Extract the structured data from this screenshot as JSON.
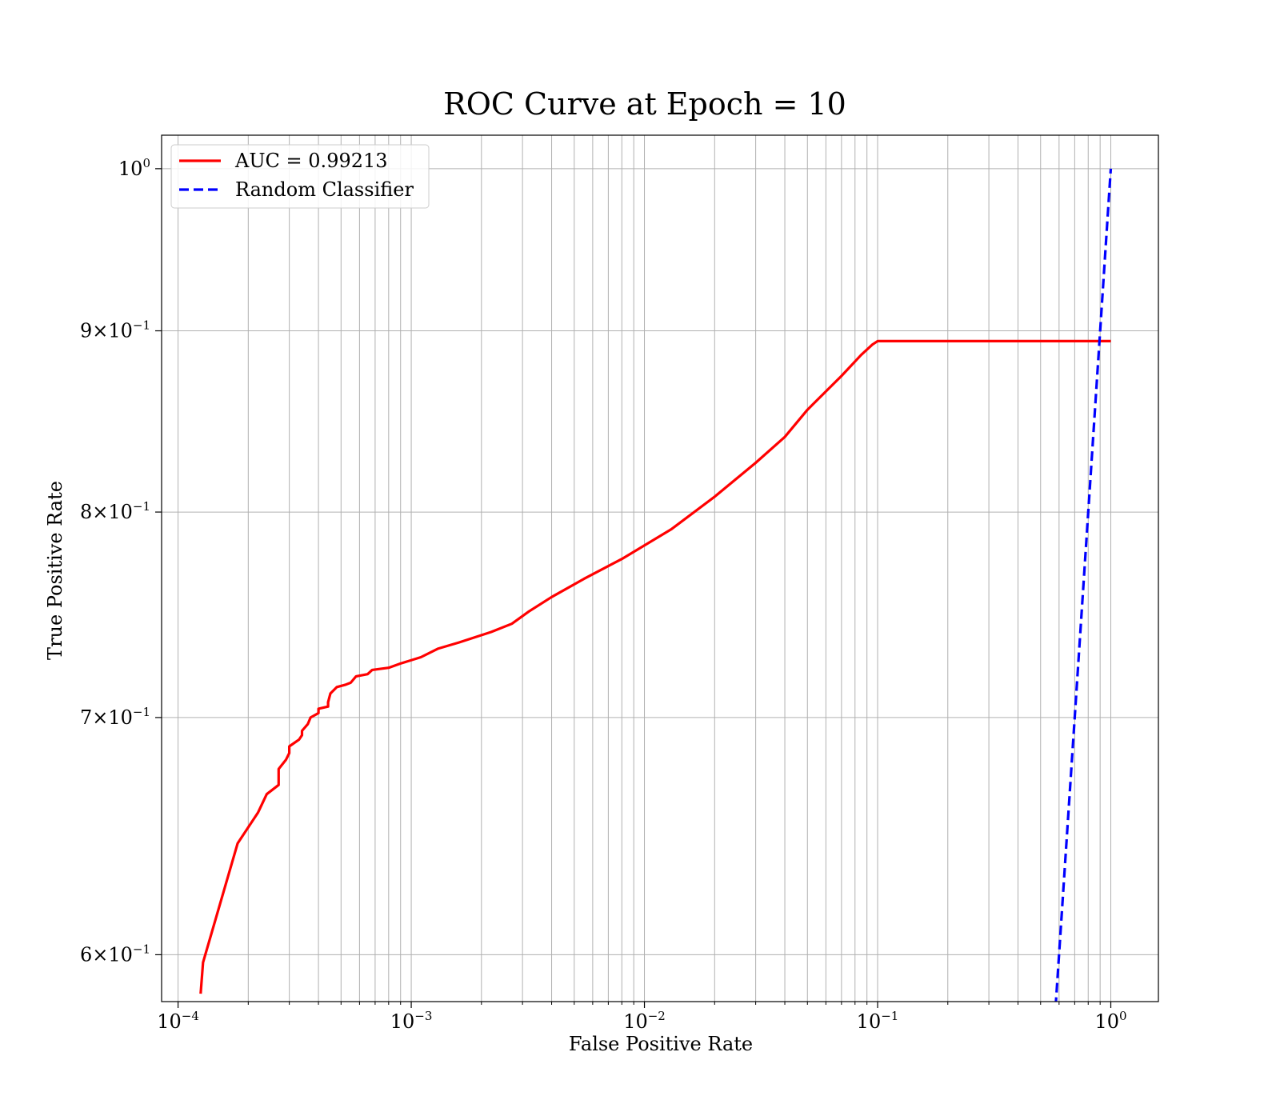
{
  "chart_data": {
    "type": "line",
    "title": "ROC Curve at Epoch = 10",
    "xlabel": "False Positive Rate",
    "ylabel": "True Positive Rate",
    "xscale": "log",
    "yscale": "log",
    "xlim": [
      8.5e-05,
      1.6
    ],
    "ylim": [
      0.582,
      1.022
    ],
    "grid": true,
    "legend_position": "upper-left",
    "x_ticks": [
      {
        "value": 0.0001,
        "base": "10",
        "exp": "−4"
      },
      {
        "value": 0.001,
        "base": "10",
        "exp": "−3"
      },
      {
        "value": 0.01,
        "base": "10",
        "exp": "−2"
      },
      {
        "value": 0.1,
        "base": "10",
        "exp": "−1"
      },
      {
        "value": 1,
        "base": "10",
        "exp": "0"
      }
    ],
    "y_ticks": [
      {
        "value": 1.0,
        "mant": "",
        "base": "10",
        "exp": "0"
      },
      {
        "value": 0.9,
        "mant": "9",
        "base": "10",
        "exp": "−1"
      },
      {
        "value": 0.8,
        "mant": "8",
        "base": "10",
        "exp": "−1"
      },
      {
        "value": 0.7,
        "mant": "7",
        "base": "10",
        "exp": "−1"
      },
      {
        "value": 0.6,
        "mant": "6",
        "base": "10",
        "exp": "−1"
      }
    ],
    "series": [
      {
        "name": "AUC = 0.99213",
        "color": "#ff0000",
        "style": "solid",
        "x": [
          0.000125,
          0.000128,
          0.00018,
          0.00022,
          0.00024,
          0.00027,
          0.00027,
          0.00029,
          0.0003,
          0.0003,
          0.00033,
          0.00034,
          0.00034,
          0.00036,
          0.00037,
          0.0004,
          0.0004,
          0.00044,
          0.00044,
          0.00045,
          0.00048,
          0.00052,
          0.00055,
          0.00058,
          0.00065,
          0.00068,
          0.0008,
          0.0009,
          0.0011,
          0.0013,
          0.0016,
          0.0022,
          0.0027,
          0.0032,
          0.004,
          0.0055,
          0.008,
          0.013,
          0.02,
          0.03,
          0.04,
          0.05,
          0.07,
          0.085,
          0.095,
          0.1,
          0.2,
          0.5,
          1.0
        ],
        "y": [
          0.585,
          0.597,
          0.645,
          0.658,
          0.666,
          0.67,
          0.677,
          0.681,
          0.684,
          0.687,
          0.69,
          0.692,
          0.694,
          0.697,
          0.7,
          0.702,
          0.704,
          0.705,
          0.707,
          0.711,
          0.714,
          0.715,
          0.716,
          0.719,
          0.72,
          0.722,
          0.723,
          0.725,
          0.728,
          0.732,
          0.735,
          0.74,
          0.744,
          0.75,
          0.757,
          0.766,
          0.776,
          0.791,
          0.808,
          0.826,
          0.84,
          0.855,
          0.874,
          0.886,
          0.892,
          0.894,
          0.894,
          0.894,
          0.894
        ]
      },
      {
        "name": "Random Classifier",
        "color": "#0000ff",
        "style": "dashed",
        "x": [
          0.58,
          0.7,
          0.8,
          0.9,
          1.0
        ],
        "y": [
          0.58,
          0.7,
          0.8,
          0.9,
          1.0
        ]
      }
    ]
  }
}
